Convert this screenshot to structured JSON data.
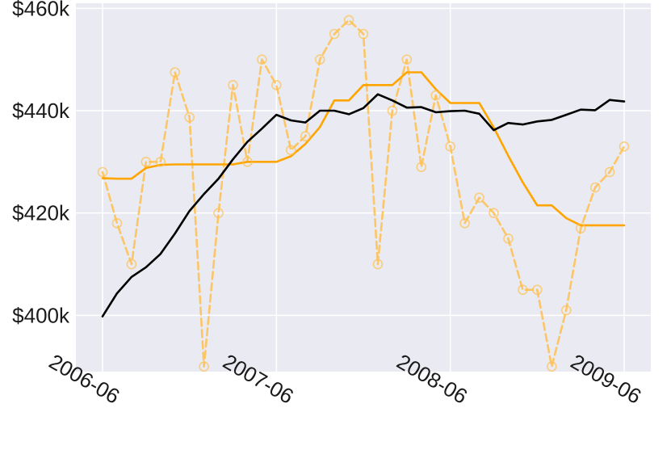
{
  "chart_data": {
    "type": "line",
    "title": "",
    "xlabel": "",
    "ylabel": "",
    "grid": true,
    "x_ticks": [
      "2006-06",
      "2007-06",
      "2008-06",
      "2009-06"
    ],
    "y_ticks": [
      "$400k",
      "$420k",
      "$440k",
      "$460k"
    ],
    "y_tick_values": [
      400000,
      420000,
      440000,
      460000
    ],
    "ylim": [
      389000,
      461000
    ],
    "x_range": [
      "2006-06",
      "2009-06"
    ],
    "x": [
      "2006-06",
      "2006-07",
      "2006-08",
      "2006-09",
      "2006-10",
      "2006-11",
      "2006-12",
      "2007-01",
      "2007-02",
      "2007-03",
      "2007-04",
      "2007-05",
      "2007-06",
      "2007-07",
      "2007-08",
      "2007-09",
      "2007-10",
      "2007-11",
      "2007-12",
      "2008-01",
      "2008-02",
      "2008-03",
      "2008-04",
      "2008-05",
      "2008-06",
      "2008-07",
      "2008-08",
      "2008-09",
      "2008-10",
      "2008-11",
      "2008-12",
      "2009-01",
      "2009-02",
      "2009-03",
      "2009-04",
      "2009-05",
      "2009-06"
    ],
    "series": [
      {
        "color": "#000000",
        "style": "solid",
        "values": [
          399800,
          404300,
          407500,
          409400,
          412000,
          416000,
          420400,
          423700,
          426700,
          430500,
          433900,
          436500,
          439200,
          438100,
          437700,
          440000,
          440000,
          439300,
          440500,
          443200,
          442000,
          440600,
          440700,
          439700,
          439900,
          440000,
          439400,
          436200,
          437600,
          437300,
          437900,
          438200,
          439200,
          440200,
          440100,
          442100,
          441800
        ]
      },
      {
        "color": "#FFA500",
        "style": "solid",
        "values": [
          426800,
          426700,
          426700,
          428800,
          429400,
          429500,
          429500,
          429500,
          429500,
          429500,
          430000,
          430000,
          430000,
          431100,
          433500,
          436800,
          442000,
          442000,
          445000,
          445000,
          445000,
          447500,
          447500,
          444200,
          441500,
          441500,
          441500,
          436700,
          431200,
          426000,
          421500,
          421500,
          419000,
          417600,
          417600,
          417600,
          417600
        ]
      },
      {
        "color": "#FFC04D",
        "style": "dashed",
        "marker": "circle",
        "values": [
          428000,
          418000,
          410000,
          430000,
          430000,
          447500,
          438700,
          390000,
          420000,
          445000,
          430000,
          450000,
          445000,
          432300,
          435000,
          450000,
          455000,
          457700,
          455000,
          410000,
          440000,
          450000,
          429000,
          443000,
          433000,
          418000,
          423000,
          420000,
          415000,
          405000,
          405000,
          390000,
          401000,
          417000,
          425000,
          428000,
          433000
        ]
      }
    ]
  }
}
